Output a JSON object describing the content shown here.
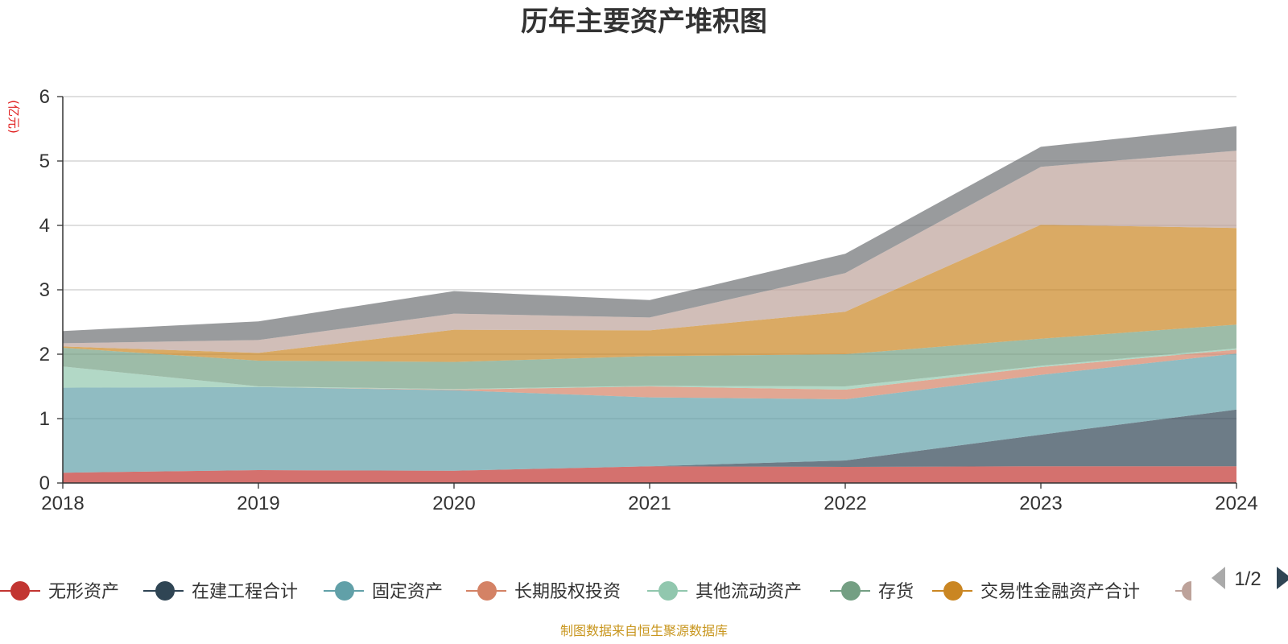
{
  "chart_data": {
    "type": "area",
    "stacked": true,
    "title": "历年主要资产堆积图",
    "unit_label": "(亿元)",
    "x": [
      "2018",
      "2019",
      "2020",
      "2021",
      "2022",
      "2023",
      "2024"
    ],
    "ylim": [
      0,
      6
    ],
    "yticks": [
      0,
      1,
      2,
      3,
      4,
      5,
      6
    ],
    "grid": true,
    "legend_position": "bottom",
    "series": [
      {
        "name": "无形资产",
        "color": "#c23531",
        "values": [
          0.16,
          0.2,
          0.19,
          0.26,
          0.25,
          0.26,
          0.26
        ]
      },
      {
        "name": "在建工程合计",
        "color": "#2f4554",
        "values": [
          0.0,
          0.0,
          0.0,
          0.0,
          0.1,
          0.49,
          0.88
        ]
      },
      {
        "name": "固定资产",
        "color": "#61a0a8",
        "values": [
          1.32,
          1.29,
          1.25,
          1.07,
          0.95,
          0.93,
          0.87
        ]
      },
      {
        "name": "长期股权投资",
        "color": "#d48265",
        "values": [
          0.0,
          0.0,
          0.01,
          0.17,
          0.15,
          0.12,
          0.06
        ]
      },
      {
        "name": "其他流动资产",
        "color": "#91c7ae",
        "values": [
          0.33,
          0.01,
          0.01,
          0.01,
          0.05,
          0.02,
          0.02
        ]
      },
      {
        "name": "存货",
        "color": "#749f83",
        "values": [
          0.29,
          0.4,
          0.42,
          0.46,
          0.5,
          0.42,
          0.37
        ]
      },
      {
        "name": "交易性金融资产合计",
        "color": "#ca8622",
        "values": [
          0.02,
          0.12,
          0.5,
          0.4,
          0.66,
          1.77,
          1.5
        ]
      },
      {
        "color": "#bda29a",
        "values": [
          0.05,
          0.2,
          0.25,
          0.2,
          0.6,
          0.9,
          1.2
        ]
      },
      {
        "color": "#6e7074",
        "values": [
          0.19,
          0.29,
          0.35,
          0.27,
          0.3,
          0.31,
          0.38
        ]
      }
    ]
  },
  "legend": {
    "page_indicator": "1/2",
    "prev_icon": "triangle-left-icon",
    "next_icon": "triangle-right-icon"
  },
  "footer": {
    "source": "制图数据来自恒生聚源数据库"
  }
}
